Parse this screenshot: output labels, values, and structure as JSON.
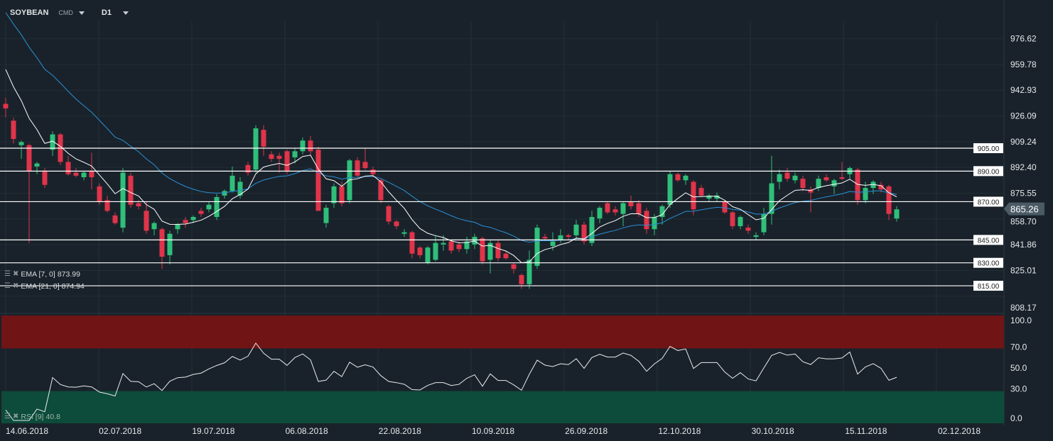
{
  "header": {
    "symbol": "SOYBEAN",
    "type": "CMD",
    "timeframe": "D1"
  },
  "indicators": {
    "ema7": {
      "label": "EMA [7, 0]",
      "value": "873.99",
      "color": "#ffffff"
    },
    "ema21": {
      "label": "EMA [21, 0]",
      "value": "874.94",
      "color": "#2a8fd8"
    },
    "rsi": {
      "label": "RSI [9]",
      "value": "40.8"
    }
  },
  "chart_data": {
    "type": "candlestick",
    "symbol": "SOYBEAN",
    "price_ticks": [
      "976.62",
      "959.78",
      "942.93",
      "926.09",
      "909.24",
      "892.40",
      "875.55",
      "858.70",
      "841.86",
      "825.01",
      "808.17"
    ],
    "levels": [
      "905.00",
      "890.00",
      "870.00",
      "845.00",
      "830.00",
      "815.00"
    ],
    "current_price": "865.26",
    "rsi_ticks": [
      "100.0",
      "70.0",
      "50.0",
      "30.0",
      "0.0"
    ],
    "rsi_zones": {
      "overbought": 70,
      "oversold": 30
    },
    "x_labels": [
      "14.06.2018",
      "02.07.2018",
      "19.07.2018",
      "06.08.2018",
      "22.08.2018",
      "10.09.2018",
      "26.09.2018",
      "12.10.2018",
      "30.10.2018",
      "15.11.2018",
      "02.12.2018"
    ],
    "colors": {
      "up": "#2fbf7a",
      "down": "#e0344a",
      "overbought_zone": "#701416",
      "oversold_zone": "#0d4b3a"
    },
    "ohlc": [
      [
        934,
        938,
        925,
        931
      ],
      [
        923,
        925,
        908,
        911
      ],
      [
        907,
        910,
        898,
        909
      ],
      [
        907,
        908,
        843,
        890
      ],
      [
        893,
        896,
        888,
        895
      ],
      [
        890,
        892,
        879,
        881
      ],
      [
        904,
        916,
        900,
        914
      ],
      [
        914,
        915,
        894,
        896
      ],
      [
        896,
        900,
        887,
        888
      ],
      [
        889,
        892,
        886,
        887
      ],
      [
        886,
        890,
        884,
        889
      ],
      [
        890,
        902,
        878,
        886
      ],
      [
        880,
        882,
        868,
        870
      ],
      [
        871,
        874,
        863,
        864
      ],
      [
        861,
        863,
        855,
        856
      ],
      [
        853,
        892,
        850,
        889
      ],
      [
        887,
        889,
        866,
        868
      ],
      [
        869,
        871,
        865,
        867
      ],
      [
        864,
        870,
        849,
        851
      ],
      [
        852,
        857,
        848,
        856
      ],
      [
        852,
        853,
        826,
        834
      ],
      [
        835,
        851,
        829,
        849
      ],
      [
        852,
        856,
        849,
        855
      ],
      [
        858,
        860,
        853,
        856
      ],
      [
        858,
        861,
        856,
        860
      ],
      [
        864,
        866,
        860,
        862
      ],
      [
        865,
        870,
        863,
        868
      ],
      [
        860,
        875,
        858,
        873
      ],
      [
        874,
        878,
        872,
        877
      ],
      [
        877,
        893,
        876,
        887
      ],
      [
        874,
        886,
        872,
        883
      ],
      [
        894,
        896,
        887,
        889
      ],
      [
        891,
        920,
        889,
        918
      ],
      [
        917,
        920,
        900,
        906
      ],
      [
        901,
        903,
        896,
        898
      ],
      [
        900,
        902,
        889,
        898
      ],
      [
        903,
        904,
        888,
        890
      ],
      [
        899,
        905,
        895,
        903
      ],
      [
        903,
        912,
        901,
        910
      ],
      [
        910,
        913,
        900,
        903
      ],
      [
        904,
        906,
        864,
        864
      ],
      [
        856,
        868,
        853,
        866
      ],
      [
        869,
        882,
        866,
        880
      ],
      [
        880,
        883,
        867,
        869
      ],
      [
        871,
        898,
        869,
        897
      ],
      [
        897,
        899,
        886,
        887
      ],
      [
        896,
        905,
        891,
        892
      ],
      [
        891,
        893,
        886,
        888
      ],
      [
        884,
        885,
        869,
        871
      ],
      [
        867,
        868,
        855,
        857
      ],
      [
        857,
        858,
        852,
        854
      ],
      [
        849,
        852,
        847,
        850
      ],
      [
        850,
        851,
        833,
        836
      ],
      [
        840,
        841,
        833,
        835
      ],
      [
        830,
        841,
        829,
        840
      ],
      [
        832,
        848,
        831,
        843
      ],
      [
        842,
        848,
        838,
        843
      ],
      [
        844,
        845,
        836,
        838
      ],
      [
        842,
        844,
        837,
        839
      ],
      [
        839,
        847,
        836,
        844
      ],
      [
        842,
        849,
        839,
        847
      ],
      [
        846,
        847,
        829,
        831
      ],
      [
        832,
        845,
        823,
        843
      ],
      [
        843,
        845,
        831,
        833
      ],
      [
        836,
        838,
        832,
        833
      ],
      [
        829,
        830,
        823,
        826
      ],
      [
        822,
        823,
        813,
        816
      ],
      [
        816,
        838,
        813,
        832
      ],
      [
        828,
        855,
        826,
        853
      ],
      [
        847,
        849,
        845,
        846
      ],
      [
        841,
        850,
        838,
        844
      ],
      [
        845,
        852,
        843,
        848
      ],
      [
        848,
        849,
        845,
        847
      ],
      [
        848,
        858,
        846,
        855
      ],
      [
        855,
        857,
        842,
        844
      ],
      [
        843,
        864,
        841,
        860
      ],
      [
        859,
        867,
        856,
        866
      ],
      [
        869,
        870,
        862,
        863
      ],
      [
        865,
        867,
        861,
        863
      ],
      [
        862,
        870,
        854,
        869
      ],
      [
        870,
        874,
        865,
        867
      ],
      [
        869,
        871,
        860,
        862
      ],
      [
        864,
        866,
        849,
        852
      ],
      [
        852,
        862,
        848,
        860
      ],
      [
        860,
        868,
        855,
        867
      ],
      [
        868,
        890,
        866,
        888
      ],
      [
        888,
        889,
        883,
        884
      ],
      [
        884,
        888,
        881,
        887
      ],
      [
        883,
        884,
        861,
        865
      ],
      [
        879,
        881,
        873,
        874
      ],
      [
        872,
        875,
        870,
        874
      ],
      [
        872,
        876,
        870,
        874
      ],
      [
        870,
        871,
        862,
        863
      ],
      [
        863,
        864,
        852,
        854
      ],
      [
        854,
        861,
        852,
        860
      ],
      [
        853,
        855,
        849,
        851
      ],
      [
        847,
        850,
        845,
        848
      ],
      [
        850,
        866,
        848,
        862
      ],
      [
        862,
        900,
        855,
        882
      ],
      [
        883,
        891,
        878,
        888
      ],
      [
        889,
        892,
        883,
        885
      ],
      [
        884,
        889,
        882,
        887
      ],
      [
        885,
        887,
        877,
        879
      ],
      [
        878,
        880,
        863,
        876
      ],
      [
        879,
        887,
        877,
        885
      ],
      [
        886,
        888,
        883,
        884
      ],
      [
        880,
        885,
        875,
        884
      ],
      [
        886,
        896,
        884,
        885
      ],
      [
        888,
        893,
        885,
        892
      ],
      [
        891,
        892,
        868,
        871
      ],
      [
        871,
        883,
        869,
        879
      ],
      [
        879,
        884,
        875,
        883
      ],
      [
        881,
        883,
        876,
        878
      ],
      [
        880,
        881,
        858,
        862
      ],
      [
        859,
        867,
        857,
        865
      ]
    ]
  }
}
